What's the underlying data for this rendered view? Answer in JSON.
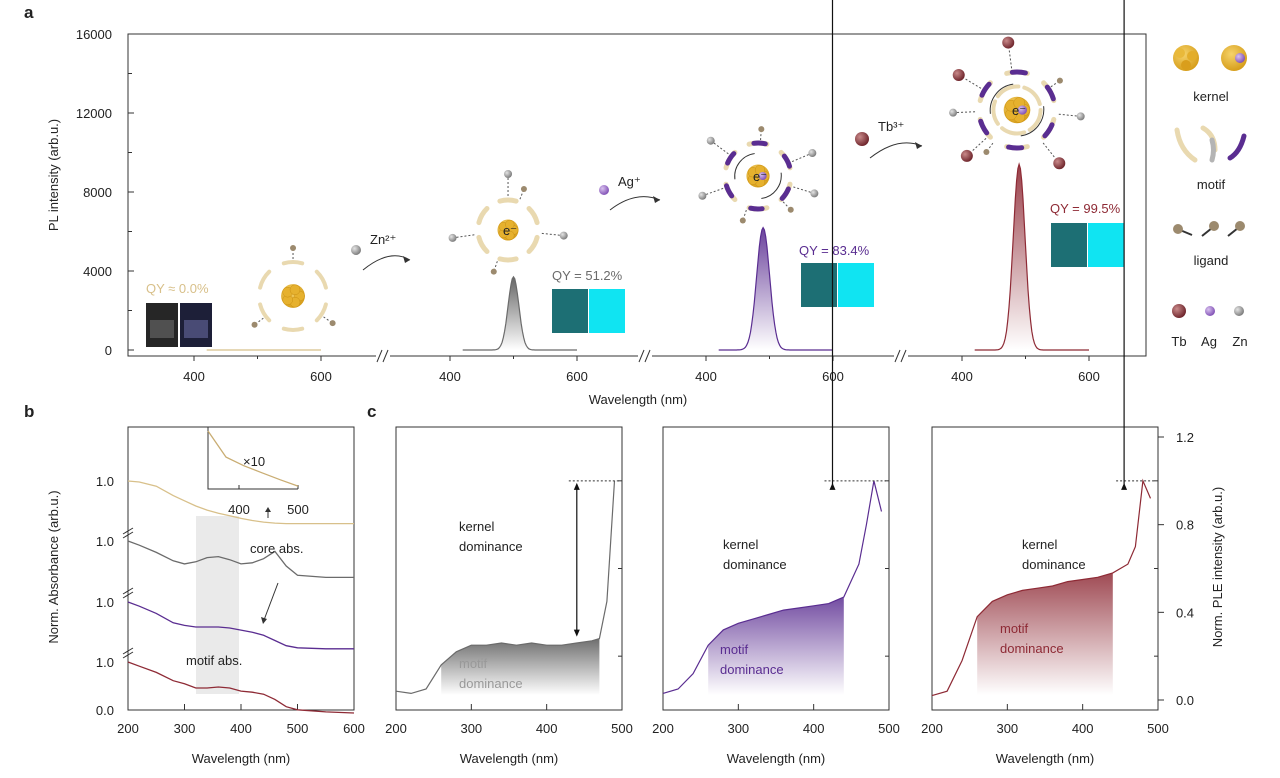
{
  "panel_letters": {
    "a": "a",
    "b": "b",
    "c": "c"
  },
  "colors": {
    "gold": "#d8c08a",
    "grey": "#6b6b6b",
    "purple": "#5a2d91",
    "red": "#8e2a35",
    "cyan": "#10e4f2",
    "teal_dark": "#1d6f74"
  },
  "panel_a": {
    "ylabel": "PL intensity (arb.u.)",
    "xlabel": "Wavelength (nm)",
    "yticks": [
      "16000",
      "12000",
      "8000",
      "4000",
      "0"
    ],
    "segment_xticks": [
      "400",
      "600"
    ],
    "qy_labels": [
      "QY ≈ 0.0%",
      "QY = 51.2%",
      "QY = 83.4%",
      "QY = 99.5%"
    ],
    "dopants": [
      "Zn²⁺",
      "Ag⁺",
      "Tb³⁺"
    ],
    "electron_label": "e⁻",
    "legend": {
      "kernel": "kernel",
      "motif": "motif",
      "ligand": "ligand",
      "tb": "Tb",
      "ag": "Ag",
      "zn": "Zn"
    }
  },
  "panel_b": {
    "ylabel": "Norm. Absorbance  (arb.u.)",
    "xlabel": "Wavelength (nm)",
    "xticks": [
      "200",
      "300",
      "400",
      "500",
      "600"
    ],
    "ytick_labels": [
      "1.0",
      "1.0",
      "1.0",
      "1.0",
      "0.0"
    ],
    "inset_label": "×10",
    "inset_xticks": [
      "400",
      "500"
    ],
    "annotations": {
      "core": "core abs.",
      "motif": "motif abs."
    }
  },
  "panel_c": {
    "xlabel": "Wavelength (nm)",
    "ylabel": "Norm. PLE intensity (arb.u.)",
    "xticks": [
      "200",
      "300",
      "400",
      "500"
    ],
    "right_yticks": [
      "1.2",
      "0.8",
      "0.4",
      "0.0"
    ],
    "kernel_label_1": "kernel",
    "kernel_label_2": "dominance",
    "motif_label_1": "motif",
    "motif_label_2": "dominance"
  },
  "chart_data": [
    {
      "type": "line",
      "panel": "a",
      "xlabel": "Wavelength (nm)",
      "ylabel": "PL intensity (arb.u.)",
      "ylim": [
        0,
        16000
      ],
      "segment_xlim": [
        400,
        600
      ],
      "series": [
        {
          "label": "QY ≈ 0.0%",
          "peak_nm": 500,
          "peak_intensity": 0
        },
        {
          "label": "QY = 51.2%",
          "peak_nm": 500,
          "peak_intensity": 3700,
          "fwhm_nm": 20
        },
        {
          "label": "QY = 83.4%",
          "peak_nm": 490,
          "peak_intensity": 6200,
          "fwhm_nm": 24
        },
        {
          "label": "QY = 99.5%",
          "peak_nm": 490,
          "peak_intensity": 9400,
          "fwhm_nm": 22
        }
      ]
    },
    {
      "type": "line",
      "panel": "b",
      "xlabel": "Wavelength (nm)",
      "ylabel": "Norm. Absorbance  (arb.u.)",
      "xlim": [
        200,
        600
      ],
      "x": [
        200,
        220,
        250,
        280,
        300,
        320,
        340,
        360,
        380,
        400,
        420,
        440,
        460,
        480,
        500,
        550,
        600
      ],
      "series": [
        {
          "values": [
            1.0,
            0.98,
            0.9,
            0.72,
            0.62,
            0.52,
            0.44,
            0.38,
            0.33,
            0.28,
            0.24,
            0.21,
            0.19,
            0.18,
            0.18,
            0.18,
            0.18
          ]
        },
        {
          "values": [
            1.0,
            0.92,
            0.78,
            0.62,
            0.56,
            0.6,
            0.68,
            0.7,
            0.64,
            0.56,
            0.58,
            0.66,
            0.8,
            0.52,
            0.34,
            0.3,
            0.3
          ]
        },
        {
          "values": [
            1.0,
            0.92,
            0.78,
            0.6,
            0.55,
            0.52,
            0.52,
            0.52,
            0.5,
            0.46,
            0.42,
            0.36,
            0.26,
            0.16,
            0.12,
            0.1,
            0.1
          ]
        },
        {
          "values": [
            1.0,
            0.92,
            0.8,
            0.64,
            0.58,
            0.5,
            0.5,
            0.52,
            0.5,
            0.44,
            0.42,
            0.38,
            0.28,
            0.14,
            0.08,
            0.04,
            0.02
          ]
        }
      ],
      "inset": {
        "x": [
          375,
          400,
          425,
          450,
          475,
          500
        ],
        "values": [
          1.0,
          0.55,
          0.4,
          0.28,
          0.16,
          0.05
        ]
      }
    },
    {
      "type": "area",
      "panel": "c",
      "xlabel": "Wavelength (nm)",
      "ylabel": "Norm. PLE intensity (arb.u.)",
      "xlim": [
        200,
        500
      ],
      "ylim": [
        0.0,
        1.2
      ],
      "x": [
        200,
        220,
        240,
        260,
        280,
        300,
        320,
        340,
        360,
        380,
        400,
        420,
        440,
        460,
        470,
        480,
        490
      ],
      "series": [
        {
          "values": [
            0.04,
            0.03,
            0.05,
            0.16,
            0.22,
            0.25,
            0.25,
            0.26,
            0.25,
            0.26,
            0.25,
            0.25,
            0.26,
            0.27,
            0.28,
            0.45,
            1.0
          ]
        },
        {
          "values": [
            0.03,
            0.05,
            0.12,
            0.25,
            0.32,
            0.35,
            0.37,
            0.39,
            0.41,
            0.42,
            0.43,
            0.44,
            0.47,
            0.62,
            0.8,
            1.0,
            0.86
          ]
        },
        {
          "values": [
            0.02,
            0.04,
            0.18,
            0.38,
            0.45,
            0.48,
            0.5,
            0.51,
            0.52,
            0.54,
            0.55,
            0.56,
            0.58,
            0.62,
            0.7,
            1.0,
            0.92
          ]
        }
      ]
    }
  ]
}
